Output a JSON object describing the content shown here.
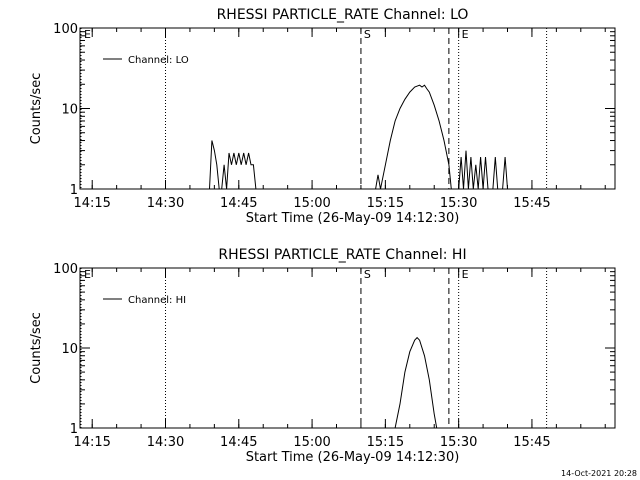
{
  "footer_timestamp": "14-Oct-2021 20:28",
  "chart_data": [
    {
      "type": "line",
      "title": "RHESSI PARTICLE_RATE Channel: LO",
      "xlabel": "Start Time (26-May-09 14:12:30)",
      "ylabel": "Counts/sec",
      "yscale": "log",
      "ylim": [
        1,
        100
      ],
      "xlim": [
        "14:12:30",
        "16:02"
      ],
      "x_ticks": [
        "14:15",
        "14:30",
        "14:45",
        "15:00",
        "15:15",
        "15:30",
        "15:45"
      ],
      "y_ticks": [
        "1",
        "10",
        "100"
      ],
      "legend": {
        "label": "Channel: LO",
        "position": "top-left"
      },
      "markers": [
        {
          "label": "E",
          "x": "14:12:30",
          "style": "dotted"
        },
        {
          "label": "",
          "x": "14:30",
          "style": "dotted"
        },
        {
          "label": "S",
          "x": "15:10",
          "style": "dashed"
        },
        {
          "label": "",
          "x": "15:28",
          "style": "dashed"
        },
        {
          "label": "E",
          "x": "15:30",
          "style": "dotted"
        },
        {
          "label": "",
          "x": "15:48",
          "style": "dotted"
        }
      ],
      "series": [
        {
          "name": "Channel: LO",
          "points": [
            [
              "14:39:00",
              1
            ],
            [
              "14:39:30",
              4
            ],
            [
              "14:40:00",
              3
            ],
            [
              "14:40:30",
              2
            ],
            [
              "14:41:00",
              1
            ],
            [
              "14:41:30",
              1
            ],
            [
              "14:42:00",
              2
            ],
            [
              "14:42:30",
              1
            ],
            [
              "14:43:00",
              2.8
            ],
            [
              "14:43:30",
              2
            ],
            [
              "14:44:00",
              2.8
            ],
            [
              "14:44:30",
              2
            ],
            [
              "14:45:00",
              2.8
            ],
            [
              "14:45:30",
              2
            ],
            [
              "14:46:00",
              2.8
            ],
            [
              "14:46:30",
              2
            ],
            [
              "14:47:00",
              2.8
            ],
            [
              "14:47:30",
              2
            ],
            [
              "14:48:00",
              2
            ],
            [
              "14:48:30",
              1
            ],
            [
              "15:13:00",
              1
            ],
            [
              "15:13:30",
              1.5
            ],
            [
              "15:14:00",
              1
            ],
            [
              "15:15:00",
              2
            ],
            [
              "15:16:00",
              4
            ],
            [
              "15:17:00",
              7
            ],
            [
              "15:18:00",
              10
            ],
            [
              "15:19:00",
              13
            ],
            [
              "15:20:00",
              16
            ],
            [
              "15:21:00",
              18.5
            ],
            [
              "15:22:00",
              19.5
            ],
            [
              "15:22:30",
              18.5
            ],
            [
              "15:23:00",
              19.5
            ],
            [
              "15:23:30",
              17.5
            ],
            [
              "15:24:00",
              16
            ],
            [
              "15:25:00",
              11
            ],
            [
              "15:26:00",
              7
            ],
            [
              "15:27:00",
              4
            ],
            [
              "15:28:00",
              2
            ],
            [
              "15:28:30",
              1
            ],
            [
              "15:30:00",
              1
            ],
            [
              "15:30:30",
              2.5
            ],
            [
              "15:31:00",
              1
            ],
            [
              "15:31:30",
              3
            ],
            [
              "15:32:00",
              1
            ],
            [
              "15:32:30",
              2.5
            ],
            [
              "15:33:00",
              1
            ],
            [
              "15:33:30",
              2
            ],
            [
              "15:34:00",
              1
            ],
            [
              "15:34:30",
              2.5
            ],
            [
              "15:35:00",
              1
            ],
            [
              "15:35:30",
              2.5
            ],
            [
              "15:36:00",
              1
            ],
            [
              "15:37:00",
              1
            ],
            [
              "15:37:30",
              2.5
            ],
            [
              "15:38:00",
              1
            ],
            [
              "15:39:00",
              1
            ],
            [
              "15:39:30",
              2.5
            ],
            [
              "15:40:00",
              1
            ]
          ]
        }
      ]
    },
    {
      "type": "line",
      "title": "RHESSI PARTICLE_RATE Channel: HI",
      "xlabel": "Start Time (26-May-09 14:12:30)",
      "ylabel": "Counts/sec",
      "yscale": "log",
      "ylim": [
        1,
        100
      ],
      "xlim": [
        "14:12:30",
        "16:02"
      ],
      "x_ticks": [
        "14:15",
        "14:30",
        "14:45",
        "15:00",
        "15:15",
        "15:30",
        "15:45"
      ],
      "y_ticks": [
        "1",
        "10",
        "100"
      ],
      "legend": {
        "label": "Channel: HI",
        "position": "top-left"
      },
      "markers": [
        {
          "label": "E",
          "x": "14:12:30",
          "style": "dotted"
        },
        {
          "label": "",
          "x": "14:30",
          "style": "dotted"
        },
        {
          "label": "S",
          "x": "15:10",
          "style": "dashed"
        },
        {
          "label": "",
          "x": "15:28",
          "style": "dashed"
        },
        {
          "label": "E",
          "x": "15:30",
          "style": "dotted"
        },
        {
          "label": "",
          "x": "15:48",
          "style": "dotted"
        }
      ],
      "series": [
        {
          "name": "Channel: HI",
          "points": [
            [
              "15:17:00",
              1
            ],
            [
              "15:18:00",
              2
            ],
            [
              "15:19:00",
              5
            ],
            [
              "15:20:00",
              9
            ],
            [
              "15:21:00",
              12.5
            ],
            [
              "15:21:30",
              13.5
            ],
            [
              "15:22:00",
              12.5
            ],
            [
              "15:23:00",
              8
            ],
            [
              "15:24:00",
              4
            ],
            [
              "15:25:00",
              1.5
            ],
            [
              "15:25:30",
              1
            ]
          ]
        }
      ]
    }
  ]
}
